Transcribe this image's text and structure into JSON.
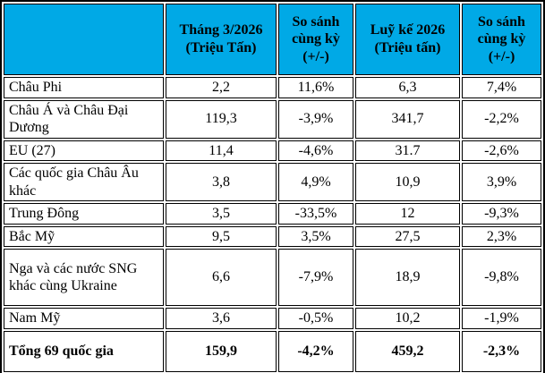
{
  "chart_data": {
    "type": "table",
    "title": "",
    "columns": [
      "",
      "Tháng 3/2026 (Triệu Tấn)",
      "So sánh cùng kỳ (+/-)",
      "Luỹ kế 2026 (Triệu tấn)",
      "So sánh cùng kỳ (+/-)"
    ],
    "rows": [
      {
        "label": "Châu Phi",
        "values": [
          "2,2",
          "11,6%",
          "6,3",
          "7,4%"
        ]
      },
      {
        "label": "Châu Á và Châu Đại Dương",
        "values": [
          "119,3",
          "-3,9%",
          "341,7",
          "-2,2%"
        ]
      },
      {
        "label": "EU (27)",
        "values": [
          "11,4",
          "-4,6%",
          "31.7",
          "-2,6%"
        ]
      },
      {
        "label": "Các quốc gia Châu Âu khác",
        "values": [
          "3,8",
          "4,9%",
          "10,9",
          "3,9%"
        ]
      },
      {
        "label": "Trung Đông",
        "values": [
          "3,5",
          "-33,5%",
          "12",
          "-9,3%"
        ]
      },
      {
        "label": "Bắc Mỹ",
        "values": [
          "9,5",
          "3,5%",
          "27,5",
          "2,3%"
        ]
      },
      {
        "label": "Nga và các nước SNG khác cùng Ukraine",
        "values": [
          "6,6",
          "-7,9%",
          "18,9",
          "-9,8%"
        ]
      },
      {
        "label": "Nam Mỹ",
        "values": [
          "3,6",
          "-0,5%",
          "10,2",
          "-1,9%"
        ]
      }
    ],
    "total_row": {
      "label": "Tổng 69 quốc gia",
      "values": [
        "159,9",
        "-4,2%",
        "459,2",
        "-2,3%"
      ]
    },
    "colors": {
      "header_bg": "#00A9E6",
      "border": "#000000",
      "text": "#000000",
      "background": "#FFFFFF"
    }
  }
}
